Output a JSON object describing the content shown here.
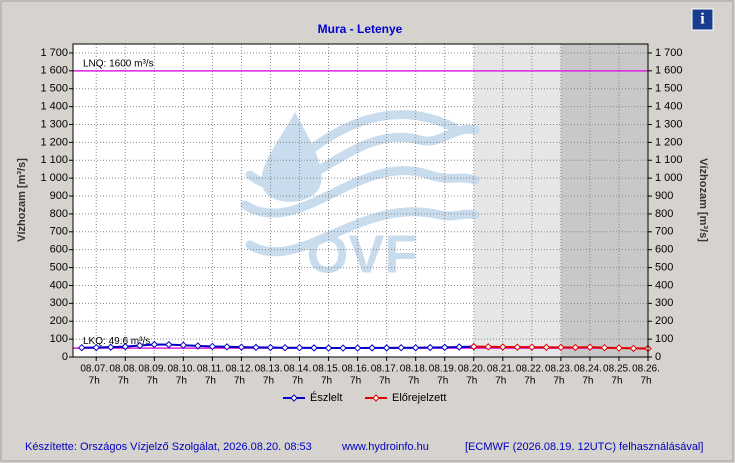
{
  "chart_data": {
    "type": "line",
    "title": "Mura - Letenye",
    "info_icon": "i",
    "watermark": "OVF",
    "y_label": "Vízhozam [m³/s]",
    "y2_label": "Vízhozam [m³/s]",
    "ylim": [
      0,
      1750
    ],
    "yticks": [
      0,
      100,
      200,
      300,
      400,
      500,
      600,
      700,
      800,
      900,
      {
        "value": 1000,
        "label": "1 000"
      },
      {
        "value": 1100,
        "label": "1 100"
      },
      {
        "value": 1200,
        "label": "1 200"
      },
      {
        "value": 1300,
        "label": "1 300"
      },
      {
        "value": 1400,
        "label": "1 400"
      },
      {
        "value": 1500,
        "label": "1 500"
      },
      {
        "value": 1600,
        "label": "1 600"
      },
      {
        "value": 1700,
        "label": "1 700"
      }
    ],
    "xlim": [
      -0.8,
      19
    ],
    "xticks": [
      {
        "value": 0,
        "label": "08.07."
      },
      {
        "value": 1,
        "label": "08.08."
      },
      {
        "value": 2,
        "label": "08.09."
      },
      {
        "value": 3,
        "label": "08.10."
      },
      {
        "value": 4,
        "label": "08.11."
      },
      {
        "value": 5,
        "label": "08.12."
      },
      {
        "value": 6,
        "label": "08.13."
      },
      {
        "value": 7,
        "label": "08.14."
      },
      {
        "value": 8,
        "label": "08.15."
      },
      {
        "value": 9,
        "label": "08.16."
      },
      {
        "value": 10,
        "label": "08.17."
      },
      {
        "value": 11,
        "label": "08.18."
      },
      {
        "value": 12,
        "label": "08.19."
      },
      {
        "value": 13,
        "label": "08.20."
      },
      {
        "value": 14,
        "label": "08.21."
      },
      {
        "value": 15,
        "label": "08.22."
      },
      {
        "value": 16,
        "label": "08.23."
      },
      {
        "value": 17,
        "label": "08.24."
      },
      {
        "value": 18,
        "label": "08.25."
      },
      {
        "value": 19,
        "label": "08.26."
      }
    ],
    "xtick_sublabels": [
      "7h",
      "7h",
      "7h",
      "7h",
      "7h",
      "7h",
      "7h",
      "7h",
      "7h",
      "7h",
      "7h",
      "7h",
      "7h",
      "7h",
      "7h",
      "7h",
      "7h",
      "7h",
      "7h",
      "7h"
    ],
    "grid": true,
    "shading": [
      {
        "from": 13,
        "to": 19,
        "color": "#e6e6e6"
      },
      {
        "from": 16,
        "to": 19,
        "color": "#c8c8c8"
      }
    ],
    "thresholds": [
      {
        "label": "LNQ: 1600  m³/s",
        "value": 1600,
        "color": "#e020e0"
      },
      {
        "label": "LKQ: 49.6  m³/s",
        "value": 49.6,
        "color": "#e020e0"
      }
    ],
    "series": [
      {
        "name": "Észlelt",
        "color": "#0000c8",
        "x": [
          -0.5,
          0,
          0.5,
          1,
          1.5,
          2,
          2.5,
          3,
          3.5,
          4,
          4.5,
          5,
          5.5,
          6,
          6.5,
          7,
          7.5,
          8,
          8.5,
          9,
          9.5,
          10,
          10.5,
          11,
          11.5,
          12,
          12.5,
          13
        ],
        "values": [
          52,
          53,
          55,
          58,
          64,
          70,
          69,
          66,
          62,
          59,
          57,
          55,
          54,
          53,
          52,
          52,
          51,
          50,
          50,
          50,
          51,
          51,
          52,
          52,
          53,
          54,
          56,
          58
        ]
      },
      {
        "name": "Előrejelzett",
        "color": "#e00000",
        "x": [
          13,
          13.5,
          14,
          14.5,
          15,
          15.5,
          16,
          16.5,
          17,
          17.5,
          18,
          18.5,
          19
        ],
        "values": [
          58,
          57,
          56,
          55,
          55,
          54,
          54,
          53,
          55,
          52,
          50,
          48,
          47
        ]
      }
    ],
    "footer": {
      "made_by": "Készítette: Országos Vízjelző Szolgálat, 2026.08.20. 08:53",
      "url": "www.hydroinfo.hu",
      "source": "[ECMWF (2026.08.19. 12UTC) felhasználásával]"
    }
  }
}
